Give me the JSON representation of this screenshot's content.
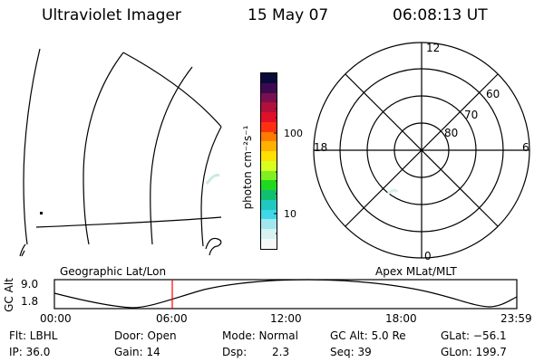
{
  "header": {
    "instrument": "Ultraviolet Imager",
    "date": "15 May 07",
    "time": "06:08:13 UT"
  },
  "colorbar": {
    "unit_label": "photon cm⁻²s⁻¹",
    "ticks": [
      {
        "value": 100,
        "label": "100"
      },
      {
        "value": 10,
        "label": "10"
      }
    ],
    "colors": [
      "#0a0a3a",
      "#3c0a50",
      "#7a0f50",
      "#b0103a",
      "#e0102a",
      "#ff3010",
      "#ff7a00",
      "#ffb000",
      "#ffe000",
      "#d8ff20",
      "#80f020",
      "#20d820",
      "#10c070",
      "#20c8c0",
      "#40d8e8",
      "#a0e8ee",
      "#d8f2f2",
      "#f4f8f8"
    ]
  },
  "polar_plot": {
    "mlt_labels": [
      "12",
      "18",
      "6",
      "0"
    ],
    "lat_labels": [
      "60",
      "70",
      "80"
    ]
  },
  "footer_panel": {
    "left_title": "Geographic Lat/Lon",
    "right_title": "Apex MLat/MLT",
    "y_axis_label": "GC Alt",
    "y_ticks": [
      "9.0",
      "1.8"
    ],
    "x_ticks": [
      "00:00",
      "06:00",
      "12:00",
      "18:00",
      "23:59"
    ],
    "marker_color": "#ff0000"
  },
  "info": {
    "flt": "Flt: LBHL",
    "ip": "IP: 36.0",
    "door": "Door: Open",
    "gain": "Gain: 14",
    "mode": "Mode: Normal",
    "dsp_label": "Dsp:",
    "dsp_value": "2.3",
    "gc_alt": "GC Alt: 5.0 Re",
    "seq": "Seq: 39",
    "glat": "GLat: −56.1",
    "glon": "GLon: 199.7"
  }
}
